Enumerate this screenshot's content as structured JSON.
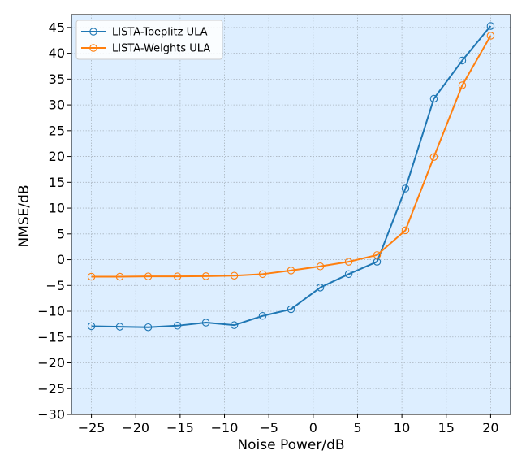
{
  "chart_data": {
    "type": "line",
    "xlabel": "Noise Power/dB",
    "ylabel": "NMSE/dB",
    "xlim": [
      -27.25,
      22.25
    ],
    "ylim": [
      -30,
      47.5
    ],
    "xticks": [
      -25,
      -20,
      -15,
      -10,
      -5,
      0,
      5,
      10,
      15,
      20
    ],
    "yticks": [
      -30,
      -25,
      -20,
      -15,
      -10,
      -5,
      0,
      5,
      10,
      15,
      20,
      25,
      30,
      35,
      40,
      45
    ],
    "grid": true,
    "legend_position": "top-left",
    "background_color": "#ddeeff",
    "x": [
      -25,
      -21.8,
      -18.6,
      -15.3,
      -12.1,
      -8.9,
      -5.7,
      -2.5,
      0.8,
      4.0,
      7.2,
      10.4,
      13.6,
      16.8,
      20
    ],
    "series": [
      {
        "name": "LISTA-Toeplitz ULA",
        "color": "#1f77b4",
        "values": [
          -12.9,
          -13.0,
          -13.1,
          -12.8,
          -12.2,
          -12.7,
          -10.9,
          -9.6,
          -5.4,
          -2.8,
          -0.4,
          13.8,
          31.2,
          38.6,
          45.3
        ]
      },
      {
        "name": "LISTA-Weights ULA",
        "color": "#ff7f0e",
        "values": [
          -3.3,
          -3.3,
          -3.25,
          -3.25,
          -3.2,
          -3.1,
          -2.8,
          -2.1,
          -1.3,
          -0.4,
          0.9,
          5.7,
          19.9,
          33.8,
          43.4
        ]
      }
    ]
  }
}
